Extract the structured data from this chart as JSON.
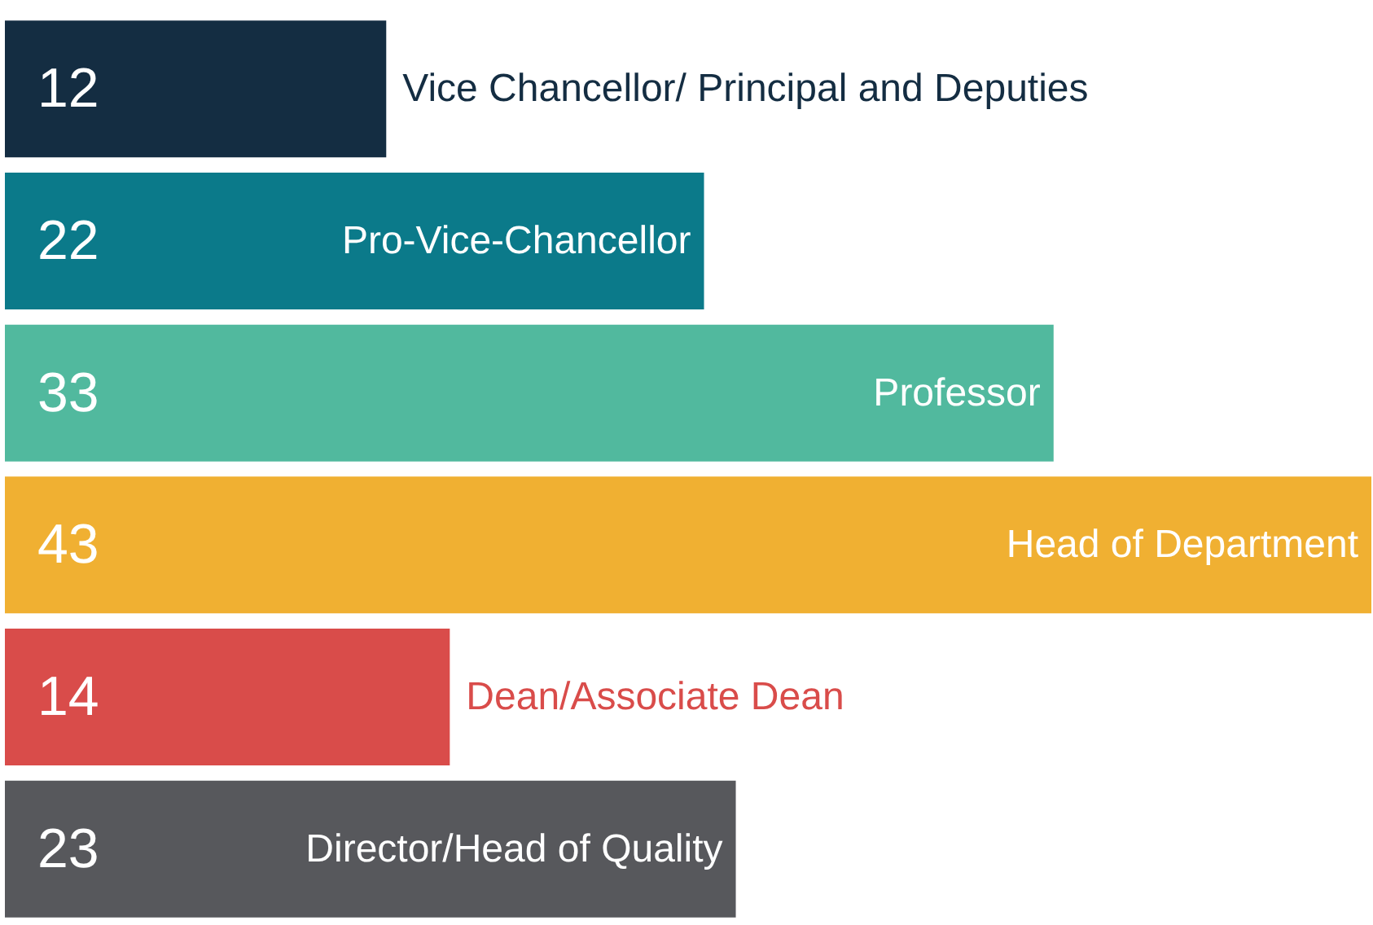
{
  "chart_data": {
    "type": "bar",
    "orientation": "horizontal",
    "data_labels": true,
    "categories": [
      "Vice Chancellor/ Principal and Deputies",
      "Pro-Vice-Chancellor",
      "Professor",
      "Head of Department",
      "Dean/Associate Dean",
      "Director/Head of Quality"
    ],
    "values": [
      12,
      22,
      33,
      43,
      14,
      23
    ],
    "colors": [
      "#142d42",
      "#0b7a8a",
      "#51b99e",
      "#f0b032",
      "#d94c4a",
      "#57585c"
    ]
  }
}
